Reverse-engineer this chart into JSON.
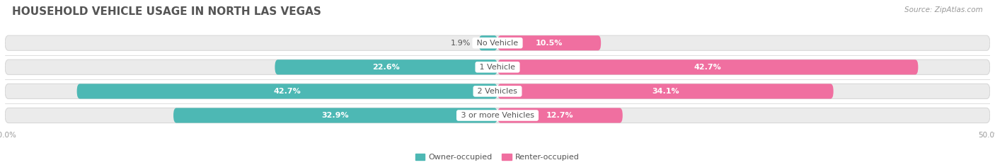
{
  "title": "HOUSEHOLD VEHICLE USAGE IN NORTH LAS VEGAS",
  "source": "Source: ZipAtlas.com",
  "categories": [
    "No Vehicle",
    "1 Vehicle",
    "2 Vehicles",
    "3 or more Vehicles"
  ],
  "owner_values": [
    1.9,
    22.6,
    42.7,
    32.9
  ],
  "renter_values": [
    10.5,
    42.7,
    34.1,
    12.7
  ],
  "owner_color": "#4db8b4",
  "renter_color": "#f06fa0",
  "owner_light_color": "#9dd8d8",
  "renter_light_color": "#f5a8c5",
  "bar_bg_color": "#ebebeb",
  "bar_bg_edge": "#d8d8d8",
  "axis_limit": 50.0,
  "legend_owner": "Owner-occupied",
  "legend_renter": "Renter-occupied",
  "title_fontsize": 11,
  "source_fontsize": 7.5,
  "value_fontsize": 8,
  "cat_fontsize": 8,
  "bar_height": 0.62,
  "background_color": "#ffffff",
  "text_color": "#555555",
  "tick_color": "#999999",
  "inside_label_threshold": 8.0
}
